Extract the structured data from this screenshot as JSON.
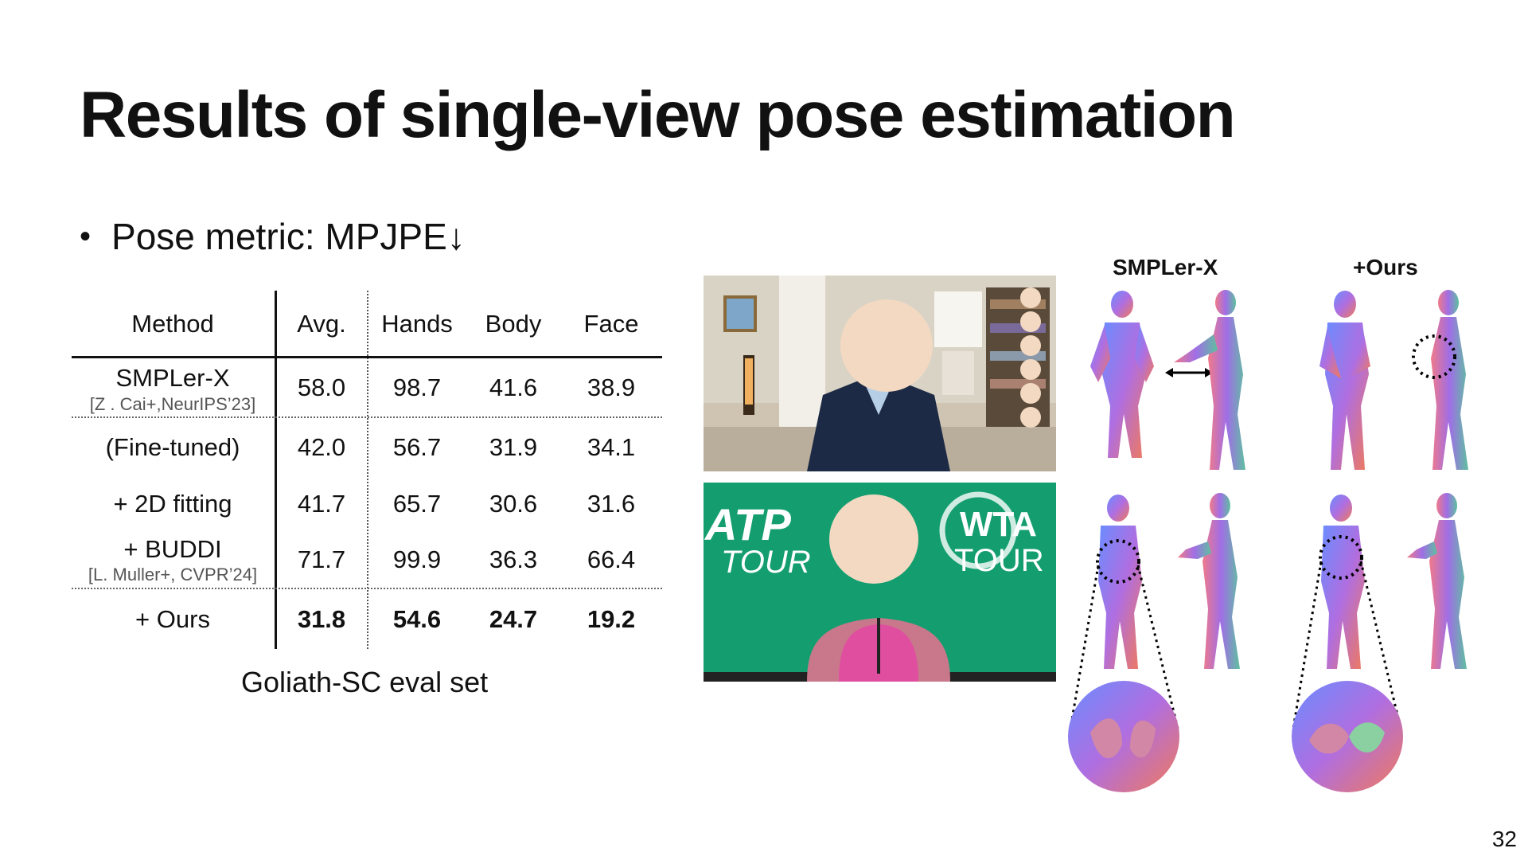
{
  "slide": {
    "title": "Results of single-view pose estimation",
    "bullet": "Pose metric: MPJPE↓",
    "caption": "Goliath-SC eval set",
    "page_number": "32"
  },
  "table": {
    "headers": [
      "Method",
      "Avg.",
      "Hands",
      "Body",
      "Face"
    ],
    "rows": [
      {
        "method": "SMPLer-X",
        "ref": "[Z . Cai+,NeurIPS’23]",
        "values": [
          "58.0",
          "98.7",
          "41.6",
          "38.9"
        ]
      },
      {
        "method": "(Fine-tuned)",
        "values": [
          "42.0",
          "56.7",
          "31.9",
          "34.1"
        ]
      },
      {
        "method": "+ 2D fitting",
        "values": [
          "41.7",
          "65.7",
          "30.6",
          "31.6"
        ]
      },
      {
        "method": "+ BUDDI",
        "ref": "[L. Muller+, CVPR’24]",
        "values": [
          "71.7",
          "99.9",
          "36.3",
          "66.4"
        ]
      },
      {
        "method": "+ Ours",
        "values": [
          "31.8",
          "54.6",
          "24.7",
          "19.2"
        ]
      }
    ]
  },
  "images": {
    "video_call": {
      "icon": "video-call-photo"
    },
    "press_conf": {
      "atp_logo": "ATP",
      "tour_left": "TOUR",
      "wta_logo": "WTA",
      "tour_right": "TOUR"
    }
  },
  "results": {
    "left_label": "SMPLer-X",
    "right_label": "+Ours"
  },
  "colors": {
    "green": "#149e70",
    "face_blur": "#f3d9c1"
  }
}
